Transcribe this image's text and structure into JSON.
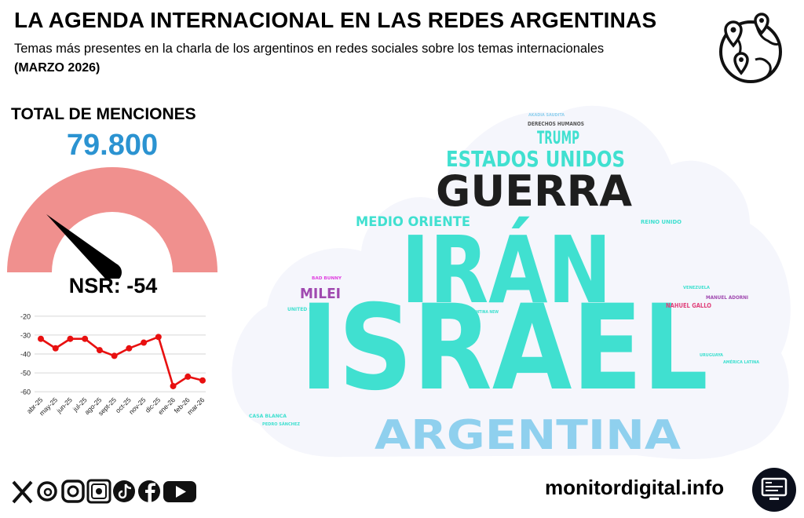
{
  "header": {
    "title": "LA AGENDA INTERNACIONAL EN LAS REDES ARGENTINAS",
    "subtitle": "Temas más presentes en la charla de los argentinos en redes sociales sobre los temas internacionales",
    "period": "(MARZO 2026)"
  },
  "summary": {
    "total_label": "TOTAL DE MENCIONES",
    "total_value": "79.800",
    "nsr_label": "NSR: -54"
  },
  "gauge": {
    "value": -54,
    "min": -100,
    "max": 100,
    "color": "#f0908e",
    "needle_color": "#000000"
  },
  "chart_data": [
    {
      "type": "line",
      "categories": [
        "abr-25",
        "may-25",
        "jun-25",
        "jul-25",
        "ago-25",
        "sept-25",
        "oct-25",
        "nov-25",
        "dic-25",
        "ene-26",
        "feb-26",
        "mar-26"
      ],
      "values": [
        -32,
        -37,
        -32,
        -32,
        -38,
        -41,
        -37,
        -34,
        -31,
        -57,
        -52,
        -54
      ],
      "yticks": [
        -20,
        -30,
        -40,
        -50,
        -60
      ],
      "ylim": [
        -62,
        -18
      ],
      "grid": true,
      "color": "#e81010"
    },
    {
      "type": "wordcloud",
      "words": [
        {
          "text": "ISRAEL",
          "color": "#40e0d0"
        },
        {
          "text": "IRÁN",
          "color": "#40e0d0"
        },
        {
          "text": "GUERRA",
          "color": "#1e1e1e"
        },
        {
          "text": "ARGENTINA",
          "color": "#8fd0ee"
        },
        {
          "text": "ESTADOS UNIDOS",
          "color": "#40e0d0"
        },
        {
          "text": "TRUMP",
          "color": "#40e0d0"
        },
        {
          "text": "MEDIO ORIENTE",
          "color": "#40e0d0"
        },
        {
          "text": "MILEI",
          "color": "#a04ab0"
        },
        {
          "text": "DERECHOS HUMANOS",
          "color": "#555555"
        },
        {
          "text": "AKADIA SAUDITA",
          "color": "#8fd0ee"
        },
        {
          "text": "REINO UNIDO",
          "color": "#40e0d0"
        },
        {
          "text": "BAD BUNNY",
          "color": "#e040e0"
        },
        {
          "text": "UNITED STATES",
          "color": "#40e0d0"
        },
        {
          "text": "ARGENTINA NEW",
          "color": "#40e0d0"
        },
        {
          "text": "VENEZUELA",
          "color": "#40e0d0"
        },
        {
          "text": "MANUEL ADORNI",
          "color": "#a04ab0"
        },
        {
          "text": "NAHUEL GALLO",
          "color": "#e0407a"
        },
        {
          "text": "URUGUAYA",
          "color": "#40e0d0"
        },
        {
          "text": "AMÉRICA LATINA",
          "color": "#40e0d0"
        },
        {
          "text": "CASA BLANCA",
          "color": "#40e0d0"
        },
        {
          "text": "PEDRO SÁNCHEZ",
          "color": "#40e0d0"
        }
      ]
    }
  ],
  "footer": {
    "site": "monitordigital.info",
    "social_icons": [
      "x-icon",
      "threads-icon",
      "instagram-icon",
      "newsletter-icon",
      "tiktok-icon",
      "facebook-icon",
      "youtube-icon"
    ]
  },
  "icons": {
    "globe": "globe-map-pins-icon",
    "monitor": "monitor-screen-icon"
  }
}
